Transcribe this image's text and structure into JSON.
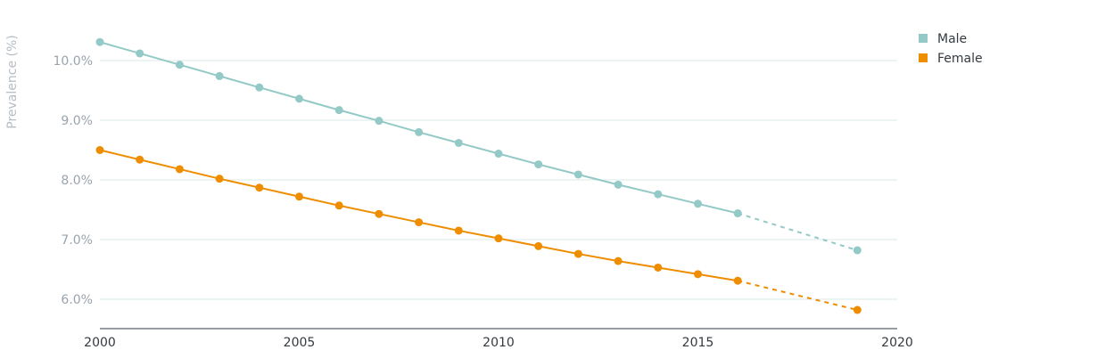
{
  "chart_data": {
    "type": "line",
    "ylabel": "Prevalence (%)",
    "xlim": [
      2000,
      2020
    ],
    "ylim": [
      5.5,
      10.5
    ],
    "x_ticks": [
      2000,
      2005,
      2010,
      2015,
      2020
    ],
    "x_tick_labels": [
      "2000",
      "2005",
      "2010",
      "2015",
      "2020"
    ],
    "y_ticks": [
      6,
      7,
      8,
      9,
      10
    ],
    "y_tick_labels": [
      "6.0%",
      "7.0%",
      "8.0%",
      "9.0%",
      "10.0%"
    ],
    "grid": "horizontal",
    "legend_position": "top-right",
    "series": [
      {
        "name": "Male",
        "color": "#93c9c6",
        "x": [
          2000,
          2001,
          2002,
          2003,
          2004,
          2005,
          2006,
          2007,
          2008,
          2009,
          2010,
          2011,
          2012,
          2013,
          2014,
          2015,
          2016,
          2019
        ],
        "values": [
          10.31,
          10.12,
          9.93,
          9.74,
          9.55,
          9.36,
          9.17,
          8.99,
          8.8,
          8.62,
          8.44,
          8.26,
          8.09,
          7.92,
          7.76,
          7.6,
          7.44,
          6.82
        ],
        "dashed_after": 2016
      },
      {
        "name": "Female",
        "color": "#ee8d00",
        "x": [
          2000,
          2001,
          2002,
          2003,
          2004,
          2005,
          2006,
          2007,
          2008,
          2009,
          2010,
          2011,
          2012,
          2013,
          2014,
          2015,
          2016,
          2019
        ],
        "values": [
          8.5,
          8.34,
          8.18,
          8.02,
          7.87,
          7.72,
          7.57,
          7.43,
          7.29,
          7.15,
          7.02,
          6.89,
          6.76,
          6.64,
          6.53,
          6.42,
          6.31,
          5.82
        ],
        "dashed_after": 2016
      }
    ]
  }
}
